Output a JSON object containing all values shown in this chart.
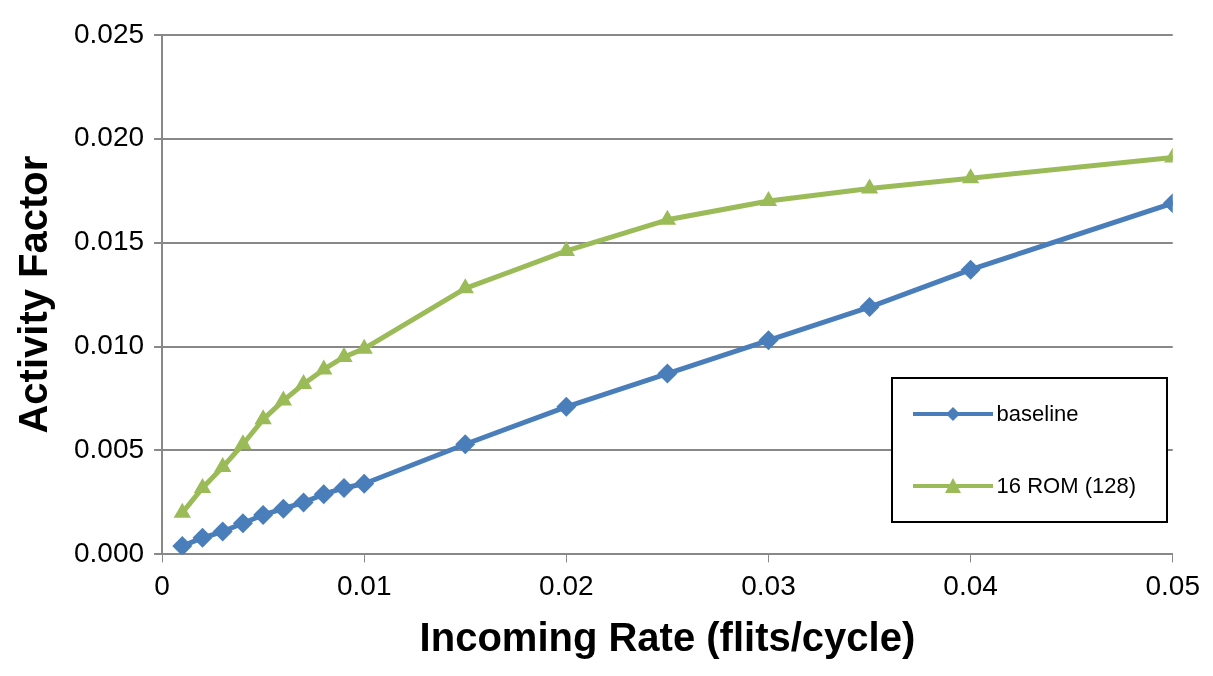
{
  "chart_data": {
    "type": "line",
    "xlabel": "Incoming Rate (flits/cycle)",
    "ylabel": "Activity Factor",
    "x": [
      0.001,
      0.002,
      0.003,
      0.004,
      0.005,
      0.006,
      0.007,
      0.008,
      0.009,
      0.01,
      0.015,
      0.02,
      0.025,
      0.03,
      0.035,
      0.04,
      0.05
    ],
    "series": [
      {
        "name": "baseline",
        "color": "#4a7ebb",
        "marker": "diamond",
        "values": [
          0.0004,
          0.0008,
          0.0011,
          0.0015,
          0.0019,
          0.0022,
          0.0025,
          0.0029,
          0.0032,
          0.0034,
          0.0053,
          0.0071,
          0.0087,
          0.0103,
          0.0119,
          0.0137,
          0.0169
        ]
      },
      {
        "name": "16 ROM (128)",
        "color": "#9bbb59",
        "marker": "triangle",
        "values": [
          0.002,
          0.0032,
          0.0042,
          0.0053,
          0.0065,
          0.0074,
          0.0082,
          0.0089,
          0.0095,
          0.0099,
          0.0128,
          0.0146,
          0.0161,
          0.017,
          0.0176,
          0.0181,
          0.0191
        ]
      }
    ],
    "xlim": [
      0,
      0.05
    ],
    "xticks": [
      0,
      0.01,
      0.02,
      0.03,
      0.04,
      0.05
    ],
    "ylim": [
      0,
      0.025
    ],
    "yticks": [
      {
        "value": 0,
        "label": "0.000"
      },
      {
        "value": 0.005,
        "label": "0.005"
      },
      {
        "value": 0.01,
        "label": "0.010"
      },
      {
        "value": 0.015,
        "label": "0.015"
      },
      {
        "value": 0.02,
        "label": "0.020"
      },
      {
        "value": 0.025,
        "label": "0.025"
      }
    ],
    "grid": "y",
    "legend": "bottom right",
    "line_style": "solid"
  }
}
